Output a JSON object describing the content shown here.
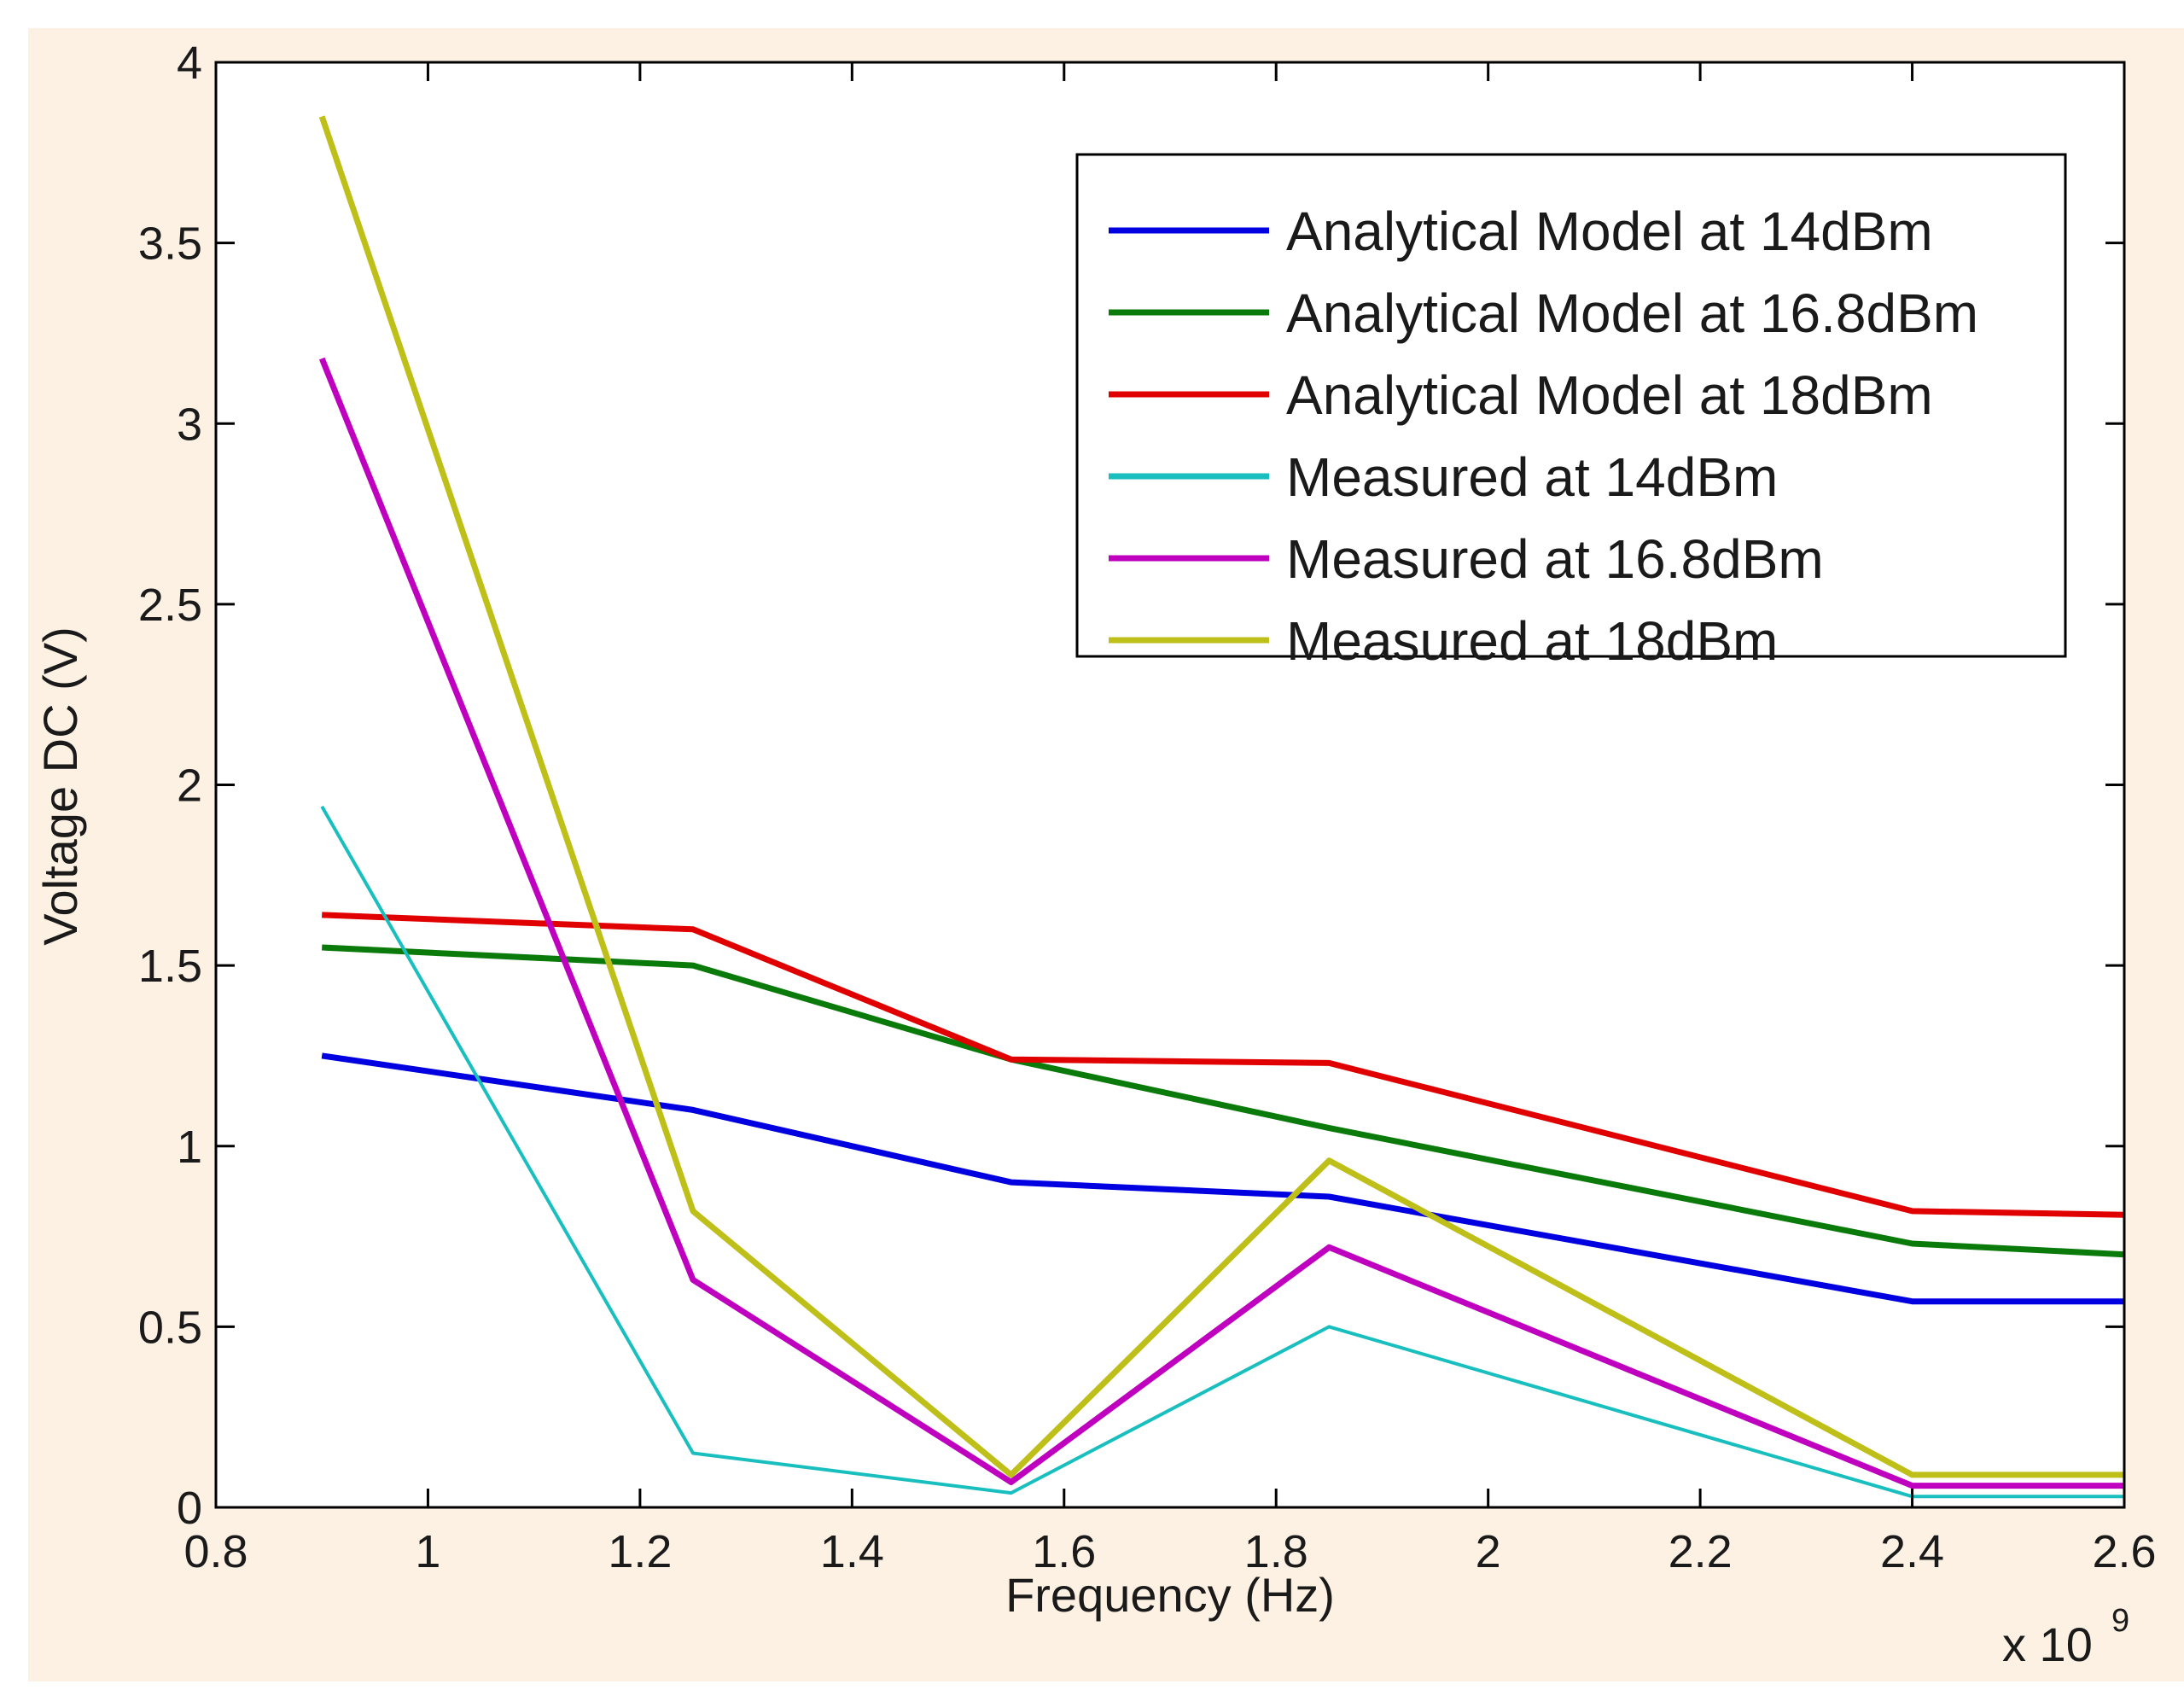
{
  "chart_data": {
    "type": "line",
    "title": "",
    "xlabel": "Frequency (Hz)",
    "ylabel": "Voltage DC (V)",
    "x_exponent_label": "x 10",
    "x_exponent_power": "9",
    "xlim": [
      0.8,
      2.6
    ],
    "ylim": [
      0,
      4
    ],
    "x_ticks": [
      0.8,
      1,
      1.2,
      1.4,
      1.6,
      1.8,
      2,
      2.2,
      2.4,
      2.6
    ],
    "x_tick_labels": [
      "0.8",
      "1",
      "1.2",
      "1.4",
      "1.6",
      "1.8",
      "2",
      "2.2",
      "2.4",
      "2.6"
    ],
    "y_ticks": [
      0,
      0.5,
      1,
      1.5,
      2,
      2.5,
      3,
      3.5,
      4
    ],
    "y_tick_labels": [
      "0",
      "0.5",
      "1",
      "1.5",
      "2",
      "2.5",
      "3",
      "3.5",
      "4"
    ],
    "x": [
      0.9,
      1.25,
      1.55,
      1.85,
      2.4,
      2.6
    ],
    "legend_position": "top-right",
    "grid": false,
    "series": [
      {
        "name": "Analytical Model at 14dBm",
        "color": "#0000e0",
        "values": [
          1.25,
          1.1,
          0.9,
          0.86,
          0.57,
          0.57
        ]
      },
      {
        "name": "Analytical Model at 16.8dBm",
        "color": "#0a7a0a",
        "values": [
          1.55,
          1.5,
          1.24,
          1.05,
          0.73,
          0.7
        ]
      },
      {
        "name": "Analytical Model at 18dBm",
        "color": "#e00000",
        "values": [
          1.64,
          1.6,
          1.24,
          1.23,
          0.82,
          0.81
        ]
      },
      {
        "name": "Measured at 14dBm",
        "color": "#19bfbf",
        "values": [
          1.94,
          0.15,
          0.04,
          0.5,
          0.03,
          0.03
        ]
      },
      {
        "name": "Measured at 16.8dBm",
        "color": "#bf00bf",
        "values": [
          3.18,
          0.63,
          0.07,
          0.72,
          0.06,
          0.06
        ]
      },
      {
        "name": "Measured at 18dBm",
        "color": "#bfbf19",
        "values": [
          3.85,
          0.82,
          0.09,
          0.96,
          0.09,
          0.09
        ]
      }
    ]
  }
}
